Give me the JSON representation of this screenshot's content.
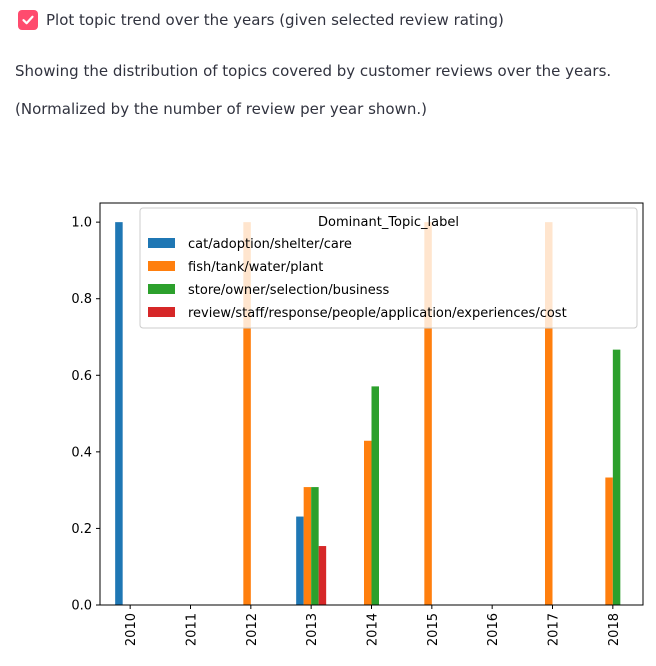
{
  "checkbox": {
    "label": "Plot topic trend over the years (given selected review rating)",
    "checked": true
  },
  "description": "Showing the distribution of topics covered by customer reviews over the years.",
  "note": "(Normalized by the number of review per year shown.)",
  "colors": {
    "accent": "#ff4b6e"
  },
  "chart_data": {
    "type": "bar",
    "categories": [
      "2010",
      "2011",
      "2012",
      "2013",
      "2014",
      "2015",
      "2016",
      "2017",
      "2018"
    ],
    "series": [
      {
        "name": "cat/adoption/shelter/care",
        "color": "#1f77b4",
        "values": [
          1.0,
          0,
          0,
          0.231,
          0,
          0,
          0,
          0,
          0
        ]
      },
      {
        "name": "fish/tank/water/plant",
        "color": "#ff7f0e",
        "values": [
          0,
          0,
          1.0,
          0.308,
          0.429,
          1.0,
          0,
          1.0,
          0.333
        ]
      },
      {
        "name": "store/owner/selection/business",
        "color": "#2ca02c",
        "values": [
          0,
          0,
          0,
          0.308,
          0.571,
          0,
          0,
          0,
          0.667
        ]
      },
      {
        "name": "review/staff/response/people/application/experiences/cost",
        "color": "#d62728",
        "values": [
          0,
          0,
          0,
          0.154,
          0,
          0,
          0,
          0,
          0
        ]
      }
    ],
    "yticks": [
      "0.0",
      "0.2",
      "0.4",
      "0.6",
      "0.8",
      "1.0"
    ],
    "ylim": [
      0,
      1.05
    ],
    "legend_title": "Dominant_Topic_label",
    "legend_position": "top-right",
    "grid": false
  }
}
